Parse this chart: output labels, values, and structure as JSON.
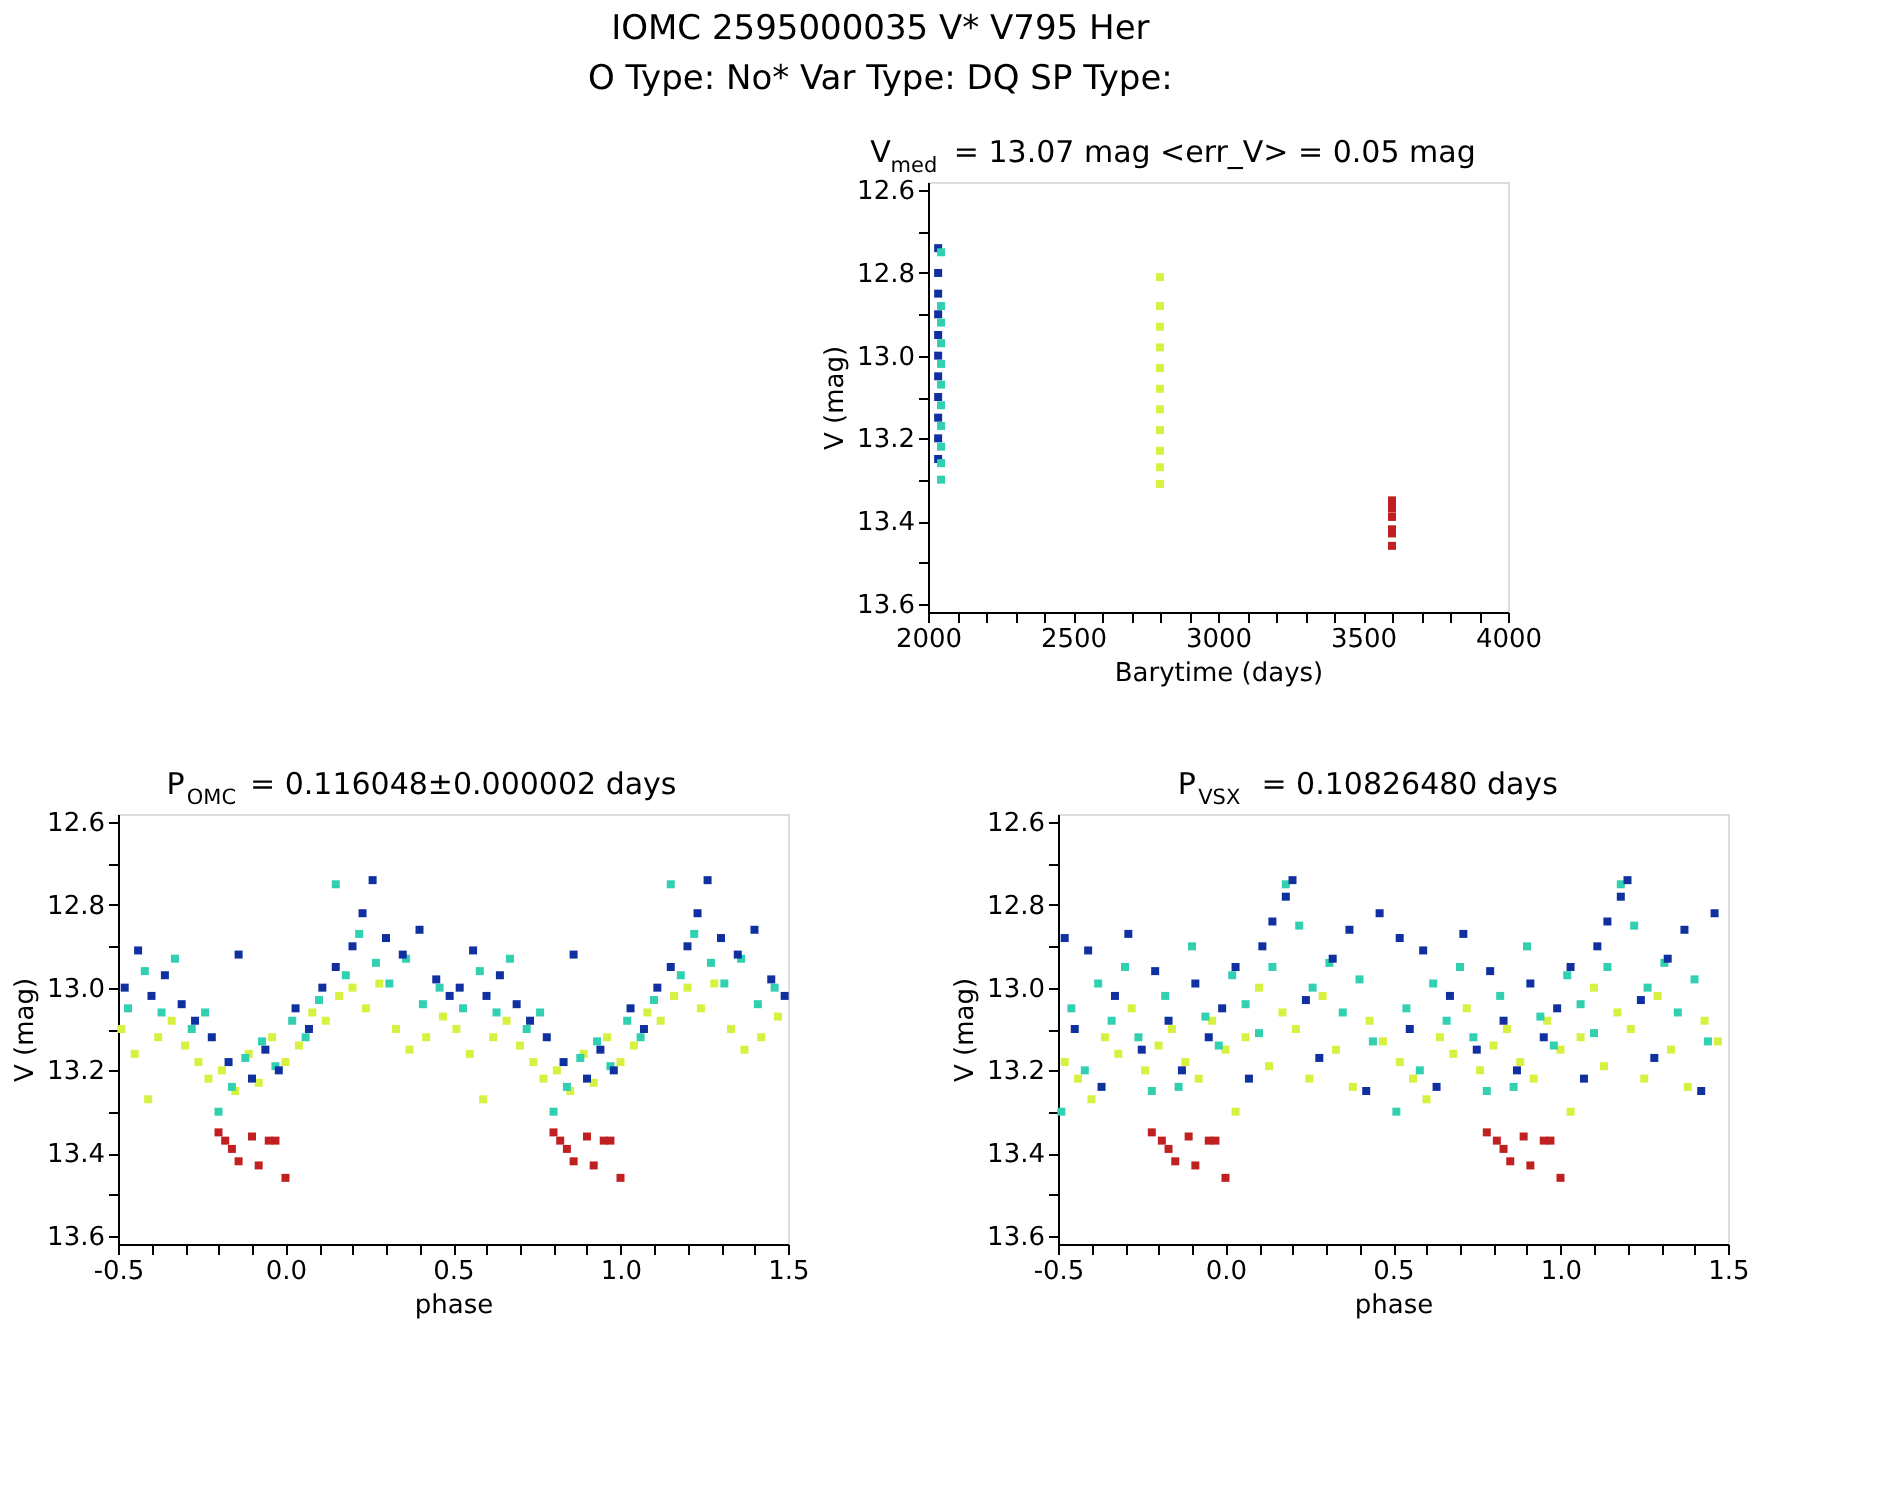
{
  "chart_data": [
    {
      "type": "scatter",
      "title": "V$_{med}$ = 13.07 mag <err_V> = 0.05 mag",
      "xlabel": "Barytime (days)",
      "ylabel": "V (mag)",
      "annotations": [
        "IOMC 2595000035    V* V795 Her",
        "O Type: No*  Var Type: DQ  SP Type:"
      ],
      "marker": "square",
      "grid": false,
      "xlim": [
        2000,
        4000
      ],
      "ylim": [
        13.62,
        12.58
      ],
      "xticks": [
        2000,
        {
          "value": 2100,
          "label": null
        },
        {
          "value": 2200,
          "label": null
        },
        {
          "value": 2300,
          "label": null
        },
        {
          "value": 2400,
          "label": null
        },
        2500,
        {
          "value": 2600,
          "label": null
        },
        {
          "value": 2700,
          "label": null
        },
        {
          "value": 2800,
          "label": null
        },
        {
          "value": 2900,
          "label": null
        },
        3000,
        {
          "value": 3100,
          "label": null
        },
        {
          "value": 3200,
          "label": null
        },
        {
          "value": 3300,
          "label": null
        },
        {
          "value": 3400,
          "label": null
        },
        3500,
        {
          "value": 3600,
          "label": null
        },
        {
          "value": 3700,
          "label": null
        },
        {
          "value": 3800,
          "label": null
        },
        {
          "value": 3900,
          "label": null
        },
        4000
      ],
      "yticks": [
        12.6,
        {
          "value": 12.7,
          "label": null
        },
        12.8,
        {
          "value": 12.9,
          "label": null
        },
        {
          "value": 13.0,
          "label": "13.0"
        },
        {
          "value": 13.1,
          "label": null
        },
        13.2,
        {
          "value": 13.3,
          "label": null
        },
        13.4,
        {
          "value": 13.5,
          "label": null
        },
        13.6
      ],
      "series": [
        {
          "color": "#1030a0",
          "x": [
            2035,
            2035,
            2035,
            2035,
            2035,
            2035,
            2035,
            2035,
            2035,
            2035,
            2035
          ],
          "values": [
            12.74,
            12.8,
            12.85,
            12.9,
            12.95,
            13.0,
            13.05,
            13.1,
            13.15,
            13.2,
            13.25
          ]
        },
        {
          "color": "#30d0b0",
          "x": [
            2045,
            2045,
            2045,
            2045,
            2045,
            2045,
            2045,
            2045,
            2045,
            2045,
            2045
          ],
          "values": [
            12.75,
            12.88,
            12.92,
            12.97,
            13.02,
            13.07,
            13.12,
            13.17,
            13.22,
            13.26,
            13.3
          ]
        },
        {
          "color": "#d8f040",
          "x": [
            2800,
            2800,
            2800,
            2800,
            2800,
            2800,
            2800,
            2800,
            2800,
            2800,
            2800
          ],
          "values": [
            12.81,
            12.88,
            12.93,
            12.98,
            13.03,
            13.08,
            13.13,
            13.18,
            13.23,
            13.27,
            13.31
          ]
        },
        {
          "color": "#c02020",
          "x": [
            3600,
            3600,
            3600,
            3600,
            3600,
            3600,
            3600
          ],
          "values": [
            13.35,
            13.36,
            13.37,
            13.39,
            13.42,
            13.43,
            13.46
          ]
        }
      ]
    },
    {
      "type": "scatter",
      "title": "P$_{OMC}$ = 0.116048±0.000002 days",
      "xlabel": "phase",
      "ylabel": "V (mag)",
      "marker": "square",
      "grid": false,
      "xlim": [
        -0.5,
        1.5
      ],
      "ylim": [
        13.62,
        12.58
      ],
      "xticks": [
        -0.5,
        {
          "value": -0.4,
          "label": null
        },
        {
          "value": -0.3,
          "label": null
        },
        {
          "value": -0.2,
          "label": null
        },
        {
          "value": -0.1,
          "label": null
        },
        {
          "value": 0,
          "label": "0.0"
        },
        {
          "value": 0.1,
          "label": null
        },
        {
          "value": 0.2,
          "label": null
        },
        {
          "value": 0.3,
          "label": null
        },
        {
          "value": 0.4,
          "label": null
        },
        0.5,
        {
          "value": 0.6,
          "label": null
        },
        {
          "value": 0.7,
          "label": null
        },
        {
          "value": 0.8,
          "label": null
        },
        {
          "value": 0.9,
          "label": null
        },
        {
          "value": 1.0,
          "label": "1.0"
        },
        {
          "value": 1.1,
          "label": null
        },
        {
          "value": 1.2,
          "label": null
        },
        {
          "value": 1.3,
          "label": null
        },
        {
          "value": 1.4,
          "label": null
        },
        1.5
      ],
      "yticks": [
        12.6,
        {
          "value": 12.7,
          "label": null
        },
        12.8,
        {
          "value": 12.9,
          "label": null
        },
        {
          "value": 13.0,
          "label": "13.0"
        },
        {
          "value": 13.1,
          "label": null
        },
        13.2,
        {
          "value": 13.3,
          "label": null
        },
        13.4,
        {
          "value": 13.5,
          "label": null
        },
        13.6
      ],
      "series": [
        {
          "color": "#d8f040",
          "x": [
            -0.49,
            -0.45,
            -0.41,
            -0.38,
            -0.34,
            -0.3,
            -0.26,
            -0.23,
            -0.19,
            -0.15,
            -0.11,
            -0.08,
            -0.04,
            0.0,
            0.04,
            0.08,
            0.12,
            0.16,
            0.2,
            0.24,
            0.28,
            0.33,
            0.37,
            0.42,
            0.47,
            0.51,
            0.55,
            0.59,
            0.62,
            0.66,
            0.7,
            0.74,
            0.77,
            0.81,
            0.85,
            0.89,
            0.92,
            0.96,
            1.0,
            1.04,
            1.08,
            1.12,
            1.16,
            1.2,
            1.24,
            1.28,
            1.33,
            1.37,
            1.42,
            1.47
          ],
          "values": [
            13.1,
            13.16,
            13.27,
            13.12,
            13.08,
            13.14,
            13.18,
            13.22,
            13.2,
            13.25,
            13.16,
            13.23,
            13.12,
            13.18,
            13.14,
            13.06,
            13.08,
            13.02,
            13.0,
            13.05,
            12.99,
            13.1,
            13.15,
            13.12,
            13.07,
            13.1,
            13.16,
            13.27,
            13.12,
            13.08,
            13.14,
            13.18,
            13.22,
            13.2,
            13.25,
            13.16,
            13.23,
            13.12,
            13.18,
            13.14,
            13.06,
            13.08,
            13.02,
            13.0,
            13.05,
            12.99,
            13.1,
            13.15,
            13.12,
            13.07
          ]
        },
        {
          "color": "#30d0b0",
          "x": [
            -0.47,
            -0.42,
            -0.37,
            -0.33,
            -0.28,
            -0.24,
            -0.2,
            -0.16,
            -0.12,
            -0.07,
            -0.03,
            0.02,
            0.06,
            0.1,
            0.15,
            0.18,
            0.22,
            0.27,
            0.31,
            0.36,
            0.41,
            0.46,
            0.53,
            0.58,
            0.63,
            0.67,
            0.72,
            0.76,
            0.8,
            0.84,
            0.88,
            0.93,
            0.97,
            1.02,
            1.06,
            1.1,
            1.15,
            1.18,
            1.22,
            1.27,
            1.31,
            1.36,
            1.41,
            1.46
          ],
          "values": [
            13.05,
            12.96,
            13.06,
            12.93,
            13.1,
            13.06,
            13.3,
            13.24,
            13.17,
            13.13,
            13.19,
            13.08,
            13.12,
            13.03,
            12.75,
            12.97,
            12.87,
            12.94,
            12.99,
            12.93,
            13.04,
            13.0,
            13.05,
            12.96,
            13.06,
            12.93,
            13.1,
            13.06,
            13.3,
            13.24,
            13.17,
            13.13,
            13.19,
            13.08,
            13.12,
            13.03,
            12.75,
            12.97,
            12.87,
            12.94,
            12.99,
            12.93,
            13.04,
            13.0
          ]
        },
        {
          "color": "#1030a0",
          "x": [
            -0.48,
            -0.44,
            -0.4,
            -0.36,
            -0.31,
            -0.27,
            -0.22,
            -0.17,
            -0.14,
            -0.1,
            -0.06,
            -0.02,
            0.03,
            0.07,
            0.11,
            0.15,
            0.2,
            0.23,
            0.26,
            0.3,
            0.35,
            0.4,
            0.45,
            0.49,
            0.52,
            0.56,
            0.6,
            0.64,
            0.69,
            0.73,
            0.78,
            0.83,
            0.86,
            0.9,
            0.94,
            0.98,
            1.03,
            1.07,
            1.11,
            1.15,
            1.2,
            1.23,
            1.26,
            1.3,
            1.35,
            1.4,
            1.45,
            1.49
          ],
          "values": [
            13.0,
            12.91,
            13.02,
            12.97,
            13.04,
            13.08,
            13.12,
            13.18,
            12.92,
            13.22,
            13.15,
            13.2,
            13.05,
            13.1,
            13.0,
            12.95,
            12.9,
            12.82,
            12.74,
            12.88,
            12.92,
            12.86,
            12.98,
            13.02,
            13.0,
            12.91,
            13.02,
            12.97,
            13.04,
            13.08,
            13.12,
            13.18,
            12.92,
            13.22,
            13.15,
            13.2,
            13.05,
            13.1,
            13.0,
            12.95,
            12.9,
            12.82,
            12.74,
            12.88,
            12.92,
            12.86,
            12.98,
            13.02
          ]
        },
        {
          "color": "#c02020",
          "x": [
            -0.2,
            -0.18,
            -0.16,
            -0.14,
            -0.1,
            -0.08,
            -0.05,
            -0.03,
            0.0,
            0.8,
            0.82,
            0.84,
            0.86,
            0.9,
            0.92,
            0.95,
            0.97,
            1.0
          ],
          "values": [
            13.35,
            13.37,
            13.39,
            13.42,
            13.36,
            13.43,
            13.37,
            13.37,
            13.46,
            13.35,
            13.37,
            13.39,
            13.42,
            13.36,
            13.43,
            13.37,
            13.37,
            13.46
          ]
        }
      ]
    },
    {
      "type": "scatter",
      "title": "P$_{VSX}$ = 0.10826480 days",
      "xlabel": "phase",
      "ylabel": "V (mag)",
      "marker": "square",
      "grid": false,
      "xlim": [
        -0.5,
        1.5
      ],
      "ylim": [
        13.62,
        12.58
      ],
      "xticks": [
        -0.5,
        {
          "value": -0.4,
          "label": null
        },
        {
          "value": -0.3,
          "label": null
        },
        {
          "value": -0.2,
          "label": null
        },
        {
          "value": -0.1,
          "label": null
        },
        {
          "value": 0,
          "label": "0.0"
        },
        {
          "value": 0.1,
          "label": null
        },
        {
          "value": 0.2,
          "label": null
        },
        {
          "value": 0.3,
          "label": null
        },
        {
          "value": 0.4,
          "label": null
        },
        0.5,
        {
          "value": 0.6,
          "label": null
        },
        {
          "value": 0.7,
          "label": null
        },
        {
          "value": 0.8,
          "label": null
        },
        {
          "value": 0.9,
          "label": null
        },
        {
          "value": 1.0,
          "label": "1.0"
        },
        {
          "value": 1.1,
          "label": null
        },
        {
          "value": 1.2,
          "label": null
        },
        {
          "value": 1.3,
          "label": null
        },
        {
          "value": 1.4,
          "label": null
        },
        1.5
      ],
      "yticks": [
        12.6,
        {
          "value": 12.7,
          "label": null
        },
        12.8,
        {
          "value": 12.9,
          "label": null
        },
        {
          "value": 13.0,
          "label": "13.0"
        },
        {
          "value": 13.1,
          "label": null
        },
        13.2,
        {
          "value": 13.3,
          "label": null
        },
        13.4,
        {
          "value": 13.5,
          "label": null
        },
        13.6
      ],
      "series": [
        {
          "color": "#d8f040",
          "x": [
            -0.48,
            -0.44,
            -0.4,
            -0.36,
            -0.32,
            -0.28,
            -0.24,
            -0.2,
            -0.16,
            -0.12,
            -0.08,
            -0.04,
            0.0,
            0.03,
            0.06,
            0.1,
            0.13,
            0.17,
            0.21,
            0.25,
            0.29,
            0.33,
            0.38,
            0.43,
            0.47,
            0.52,
            0.56,
            0.6,
            0.64,
            0.68,
            0.72,
            0.76,
            0.8,
            0.84,
            0.88,
            0.92,
            0.96,
            1.0,
            1.03,
            1.06,
            1.1,
            1.13,
            1.17,
            1.21,
            1.25,
            1.29,
            1.33,
            1.38,
            1.43,
            1.47
          ],
          "values": [
            13.18,
            13.22,
            13.27,
            13.12,
            13.16,
            13.05,
            13.2,
            13.14,
            13.1,
            13.18,
            13.22,
            13.08,
            13.15,
            13.3,
            13.12,
            13.0,
            13.19,
            13.06,
            13.1,
            13.22,
            13.02,
            13.15,
            13.24,
            13.08,
            13.13,
            13.18,
            13.22,
            13.27,
            13.12,
            13.16,
            13.05,
            13.2,
            13.14,
            13.1,
            13.18,
            13.22,
            13.08,
            13.15,
            13.3,
            13.12,
            13.0,
            13.19,
            13.06,
            13.1,
            13.22,
            13.02,
            13.15,
            13.24,
            13.08,
            13.13
          ]
        },
        {
          "color": "#30d0b0",
          "x": [
            -0.49,
            -0.46,
            -0.42,
            -0.38,
            -0.34,
            -0.3,
            -0.26,
            -0.22,
            -0.18,
            -0.14,
            -0.1,
            -0.06,
            -0.02,
            0.02,
            0.06,
            0.1,
            0.14,
            0.18,
            0.22,
            0.26,
            0.31,
            0.35,
            0.4,
            0.44,
            0.51,
            0.54,
            0.58,
            0.62,
            0.66,
            0.7,
            0.74,
            0.78,
            0.82,
            0.86,
            0.9,
            0.94,
            0.98,
            1.02,
            1.06,
            1.1,
            1.14,
            1.18,
            1.22,
            1.26,
            1.31,
            1.35,
            1.4,
            1.44
          ],
          "values": [
            13.3,
            13.05,
            13.2,
            12.99,
            13.08,
            12.95,
            13.12,
            13.25,
            13.02,
            13.24,
            12.9,
            13.07,
            13.14,
            12.97,
            13.04,
            13.11,
            12.95,
            12.75,
            12.85,
            13.0,
            12.94,
            13.06,
            12.98,
            13.13,
            13.3,
            13.05,
            13.2,
            12.99,
            13.08,
            12.95,
            13.12,
            13.25,
            13.02,
            13.24,
            12.9,
            13.07,
            13.14,
            12.97,
            13.04,
            13.11,
            12.95,
            12.75,
            12.85,
            13.0,
            12.94,
            13.06,
            12.98,
            13.13
          ]
        },
        {
          "color": "#1030a0",
          "x": [
            -0.48,
            -0.45,
            -0.41,
            -0.37,
            -0.33,
            -0.29,
            -0.25,
            -0.21,
            -0.17,
            -0.13,
            -0.09,
            -0.05,
            -0.01,
            0.03,
            0.07,
            0.11,
            0.14,
            0.18,
            0.2,
            0.24,
            0.28,
            0.32,
            0.37,
            0.42,
            0.46,
            0.52,
            0.55,
            0.59,
            0.63,
            0.67,
            0.71,
            0.75,
            0.79,
            0.83,
            0.87,
            0.91,
            0.95,
            0.99,
            1.03,
            1.07,
            1.11,
            1.14,
            1.18,
            1.2,
            1.24,
            1.28,
            1.32,
            1.37,
            1.42,
            1.46
          ],
          "values": [
            12.88,
            13.1,
            12.91,
            13.24,
            13.02,
            12.87,
            13.15,
            12.96,
            13.08,
            13.2,
            12.99,
            13.12,
            13.05,
            12.95,
            13.22,
            12.9,
            12.84,
            12.78,
            12.74,
            13.03,
            13.17,
            12.93,
            12.86,
            13.25,
            12.82,
            12.88,
            13.1,
            12.91,
            13.24,
            13.02,
            12.87,
            13.15,
            12.96,
            13.08,
            13.2,
            12.99,
            13.12,
            13.05,
            12.95,
            13.22,
            12.9,
            12.84,
            12.78,
            12.74,
            13.03,
            13.17,
            12.93,
            12.86,
            13.25,
            12.82
          ]
        },
        {
          "color": "#c02020",
          "x": [
            -0.22,
            -0.19,
            -0.17,
            -0.15,
            -0.11,
            -0.09,
            -0.05,
            -0.03,
            0.0,
            0.78,
            0.81,
            0.83,
            0.85,
            0.89,
            0.91,
            0.95,
            0.97,
            1.0
          ],
          "values": [
            13.35,
            13.37,
            13.39,
            13.42,
            13.36,
            13.43,
            13.37,
            13.37,
            13.46,
            13.35,
            13.37,
            13.39,
            13.42,
            13.36,
            13.43,
            13.37,
            13.37,
            13.46
          ]
        }
      ]
    }
  ]
}
